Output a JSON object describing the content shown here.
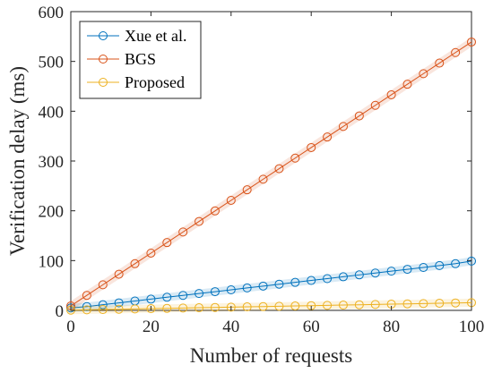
{
  "chart_data": {
    "type": "line",
    "title": "",
    "xlabel": "Number of requests",
    "ylabel": "Verification delay (ms)",
    "xlim": [
      0,
      100
    ],
    "ylim": [
      0,
      600
    ],
    "xticks": [
      0,
      20,
      40,
      60,
      80,
      100
    ],
    "yticks": [
      0,
      100,
      200,
      300,
      400,
      500,
      600
    ],
    "grid": false,
    "legend_position": "top-left",
    "x": [
      0,
      4,
      8,
      12,
      16,
      20,
      24,
      28,
      32,
      36,
      40,
      44,
      48,
      52,
      56,
      60,
      64,
      68,
      72,
      76,
      80,
      84,
      88,
      92,
      96,
      100
    ],
    "series": [
      {
        "name": "Xue et al.",
        "color": "#0072BD",
        "marker": "circle",
        "values": [
          5,
          7.7,
          11.4,
          15.1,
          18.9,
          22.6,
          26.4,
          30.1,
          33.9,
          37.6,
          41.3,
          45.1,
          48.8,
          52.6,
          56.3,
          60.1,
          63.8,
          67.5,
          71.3,
          75.0,
          78.8,
          82.5,
          86.2,
          90.0,
          93.8,
          99
        ]
      },
      {
        "name": "BGS",
        "color": "#D95319",
        "marker": "circle",
        "values": [
          9,
          30.2,
          51.4,
          72.6,
          93.8,
          115,
          136.2,
          157.4,
          178.6,
          199.8,
          221,
          242.2,
          263.4,
          284.6,
          305.8,
          327,
          348.2,
          369.4,
          390.6,
          411.8,
          433,
          454.2,
          475.4,
          496.6,
          517.8,
          539
        ]
      },
      {
        "name": "Proposed",
        "color": "#EDB120",
        "marker": "circle",
        "values": [
          0.5,
          1.1,
          1.7,
          2.3,
          2.9,
          3.5,
          4.1,
          4.7,
          5.3,
          5.9,
          6.5,
          7.1,
          7.7,
          8.3,
          8.9,
          9.5,
          10.1,
          10.7,
          11.3,
          11.9,
          12.5,
          13.1,
          13.7,
          14.3,
          14.9,
          15.5
        ]
      }
    ]
  }
}
